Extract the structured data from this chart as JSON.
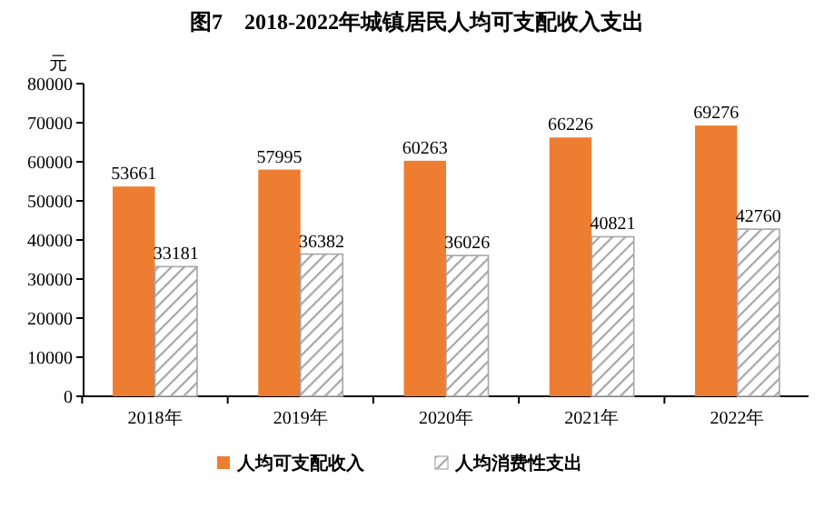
{
  "chart_data": {
    "type": "bar",
    "title": "图7　2018-2022年城镇居民人均可支配收入支出",
    "ylabel": "元",
    "categories": [
      "2018年",
      "2019年",
      "2020年",
      "2021年",
      "2022年"
    ],
    "series": [
      {
        "name": "人均可支配收入",
        "color": "#ed7d31",
        "values": [
          53661,
          57995,
          60263,
          66226,
          69276
        ]
      },
      {
        "name": "人均消费性支出",
        "color": "#a6a6a6",
        "values": [
          33181,
          36382,
          36026,
          40821,
          42760
        ]
      }
    ],
    "ylim": [
      0,
      80000
    ],
    "yticks": [
      0,
      10000,
      20000,
      30000,
      40000,
      50000,
      60000,
      70000,
      80000
    ],
    "data_labels": true,
    "legend": "bottom",
    "grid": false
  }
}
